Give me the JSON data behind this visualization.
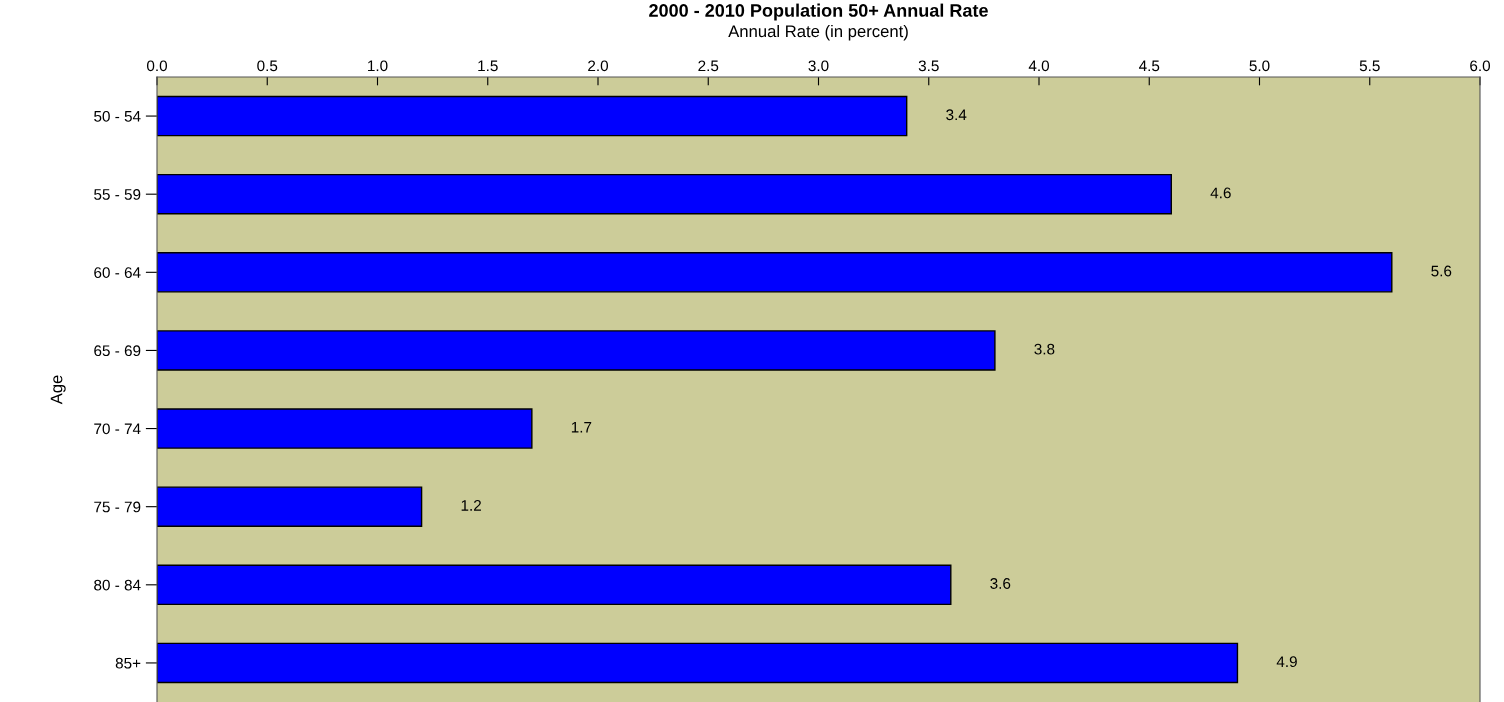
{
  "chart_data": {
    "type": "bar",
    "orientation": "horizontal",
    "title": "2000 - 2010 Population 50+ Annual Rate",
    "xlabel": "Annual Rate (in percent)",
    "ylabel": "Age",
    "categories": [
      "50 - 54",
      "55 - 59",
      "60 - 64",
      "65 - 69",
      "70 - 74",
      "75 - 79",
      "80 - 84",
      "85+"
    ],
    "values": [
      3.4,
      4.6,
      5.6,
      3.8,
      1.7,
      1.2,
      3.6,
      4.9
    ],
    "color": "#0000ff",
    "data_labels": true,
    "xlim": [
      0,
      6
    ],
    "xticks": [
      {
        "value": 0,
        "label": "0.0"
      },
      {
        "value": 0.5,
        "label": "0.5"
      },
      {
        "value": 1,
        "label": "1.0"
      },
      {
        "value": 1.5,
        "label": "1.5"
      },
      {
        "value": 2,
        "label": "2.0"
      },
      {
        "value": 2.5,
        "label": "2.5"
      },
      {
        "value": 3,
        "label": "3.0"
      },
      {
        "value": 3.5,
        "label": "3.5"
      },
      {
        "value": 4,
        "label": "4.0"
      },
      {
        "value": 4.5,
        "label": "4.5"
      },
      {
        "value": 5,
        "label": "5.0"
      },
      {
        "value": 5.5,
        "label": "5.5"
      },
      {
        "value": 6,
        "label": "6.0"
      }
    ],
    "grid": false,
    "legend": false
  }
}
